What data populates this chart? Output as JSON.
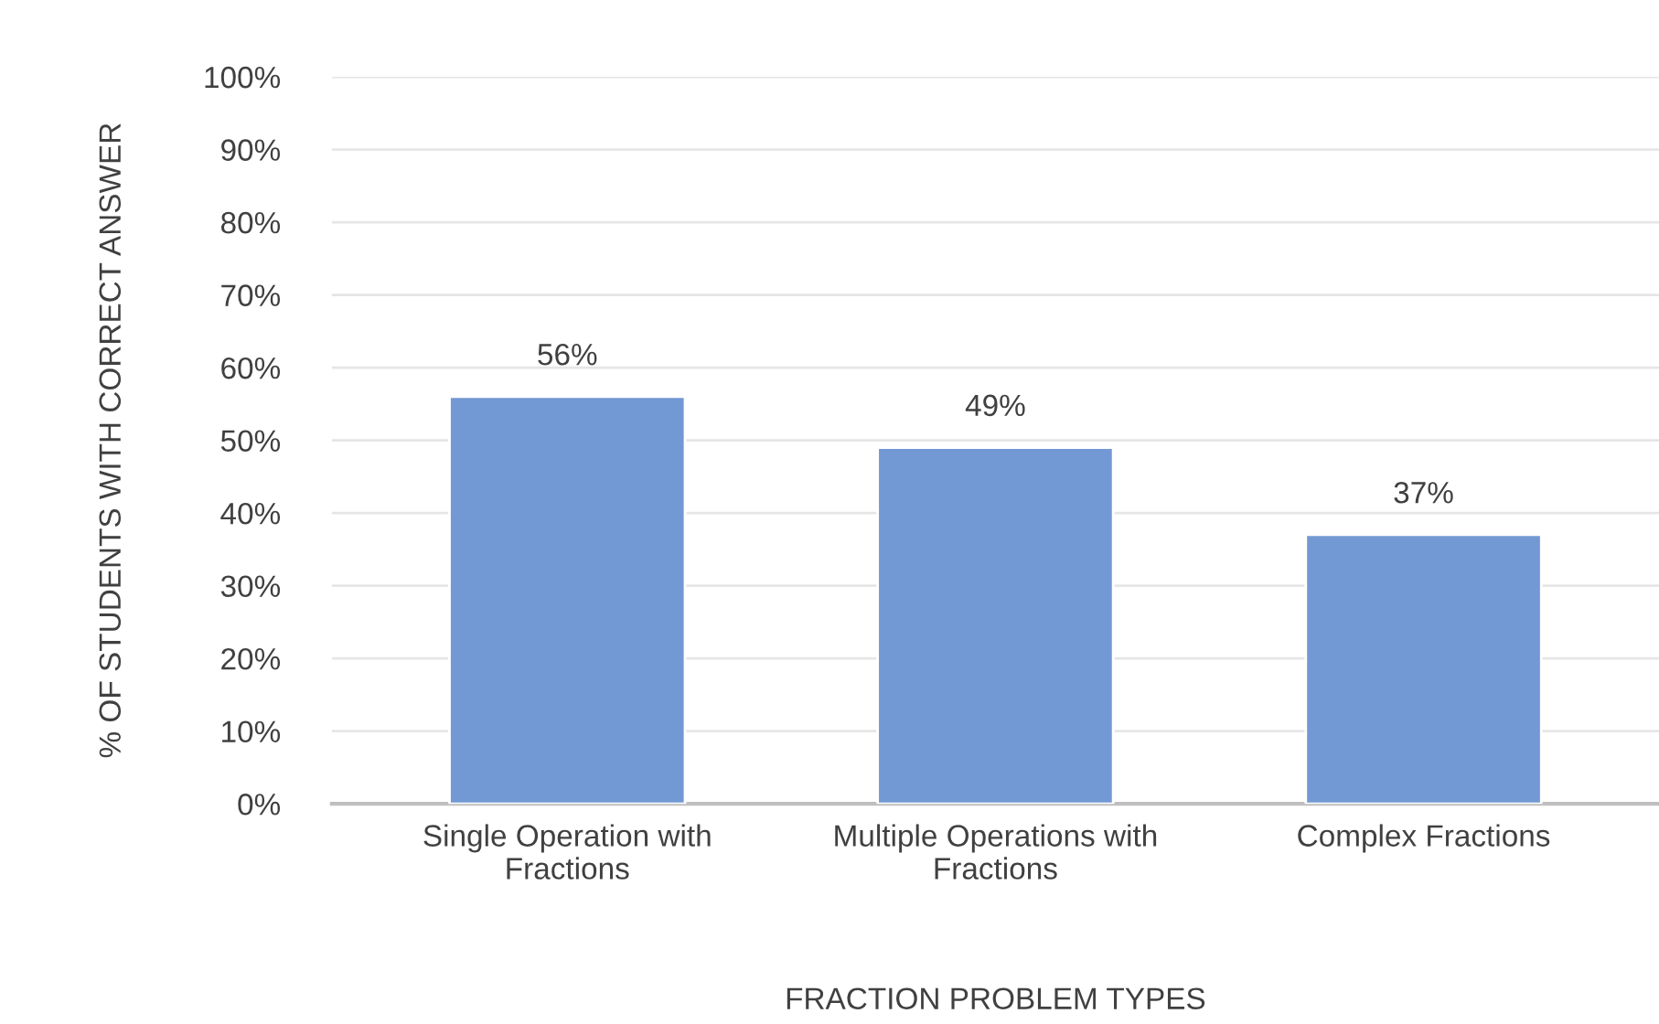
{
  "chart_data": {
    "type": "bar",
    "categories": [
      "Single Operation with\nFractions",
      "Multiple Operations with\nFractions",
      "Complex Fractions"
    ],
    "values": [
      56,
      49,
      37
    ],
    "value_labels": [
      "56%",
      "49%",
      "37%"
    ],
    "color": "#7399d4",
    "xlabel": "FRACTION PROBLEM TYPES",
    "ylabel": "% OF STUDENTS WITH CORRECT ANSWER",
    "ylim": [
      0,
      100
    ],
    "yticks": [
      {
        "value": 0,
        "label": "0%"
      },
      {
        "value": 10,
        "label": "10%"
      },
      {
        "value": 20,
        "label": "20%"
      },
      {
        "value": 30,
        "label": "30%"
      },
      {
        "value": 40,
        "label": "40%"
      },
      {
        "value": 50,
        "label": "50%"
      },
      {
        "value": 60,
        "label": "60%"
      },
      {
        "value": 70,
        "label": "70%"
      },
      {
        "value": 80,
        "label": "80%"
      },
      {
        "value": 90,
        "label": "90%"
      },
      {
        "value": 100,
        "label": "100%"
      }
    ],
    "grid": "y"
  }
}
